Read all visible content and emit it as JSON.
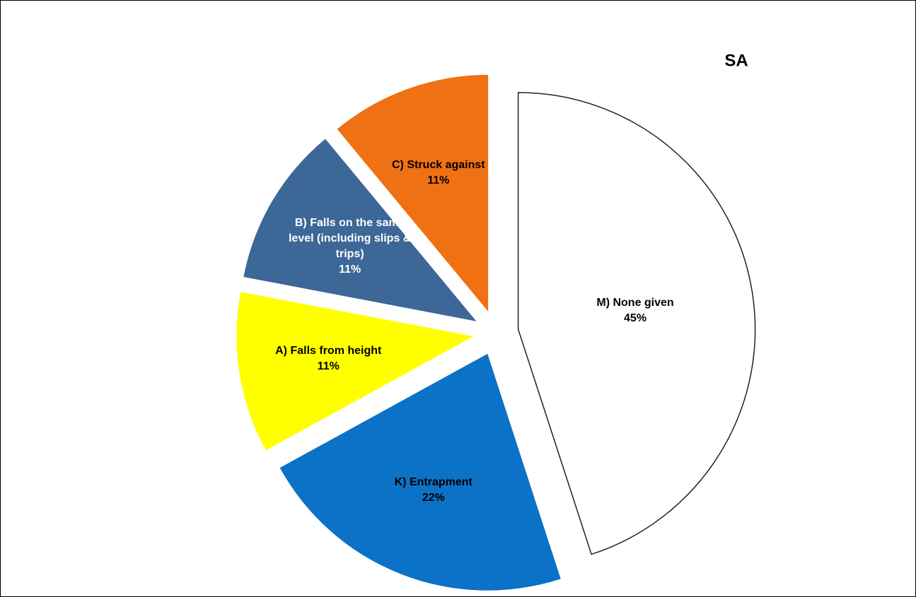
{
  "chart_data": {
    "type": "pie",
    "title": "SA",
    "categories": [
      "M) None given",
      "K) Entrapment",
      "A) Falls from height",
      "B) Falls on the same level (including slips & trips)",
      "C) Struck against"
    ],
    "values": [
      45,
      22,
      11,
      11,
      11
    ],
    "value_labels": [
      "45%",
      "22%",
      "11%",
      "11%",
      "11%"
    ],
    "colors": [
      "#ffffff",
      "#0b72c7",
      "#ffff00",
      "#3d6797",
      "#f07114"
    ]
  }
}
